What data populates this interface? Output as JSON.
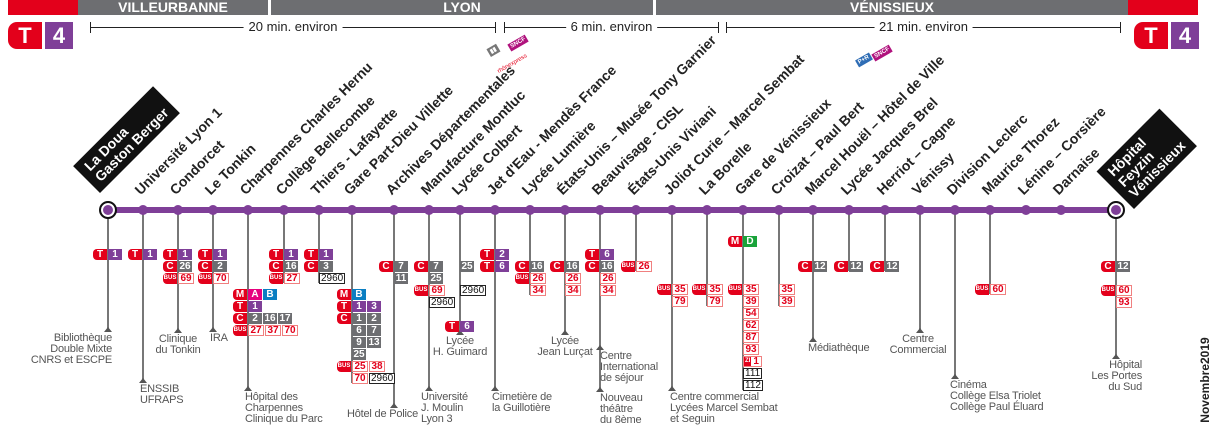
{
  "line": {
    "mode": "T",
    "number": "4"
  },
  "colors": {
    "red": "#e3001b",
    "tram_purple": "#7f3f98",
    "bus_gray": "#6d6e71",
    "metro_A": "#e6007e",
    "metro_B": "#0a7ec2",
    "metro_D": "#1aa33a"
  },
  "zones": [
    "VILLEURBANNE",
    "LYON",
    "VÉNISSIEUX"
  ],
  "durations": [
    "20 min. environ",
    "6 min. environ",
    "21 min. environ"
  ],
  "logos": {
    "sncf": "SNCF",
    "rhonexpress": "rhônexpress",
    "park_ride": "P+R"
  },
  "date": "Novembre2019",
  "stations": [
    {
      "name": "La Doua\nGaston Berger",
      "terminus": true,
      "connections": [
        {
          "mode": "T",
          "lines": [
            "1"
          ]
        }
      ],
      "labels": [
        "Bibliothèque\nDouble Mixte\nCNRS et ESCPE"
      ]
    },
    {
      "name": "Université Lyon 1",
      "connections": [
        {
          "mode": "T",
          "lines": [
            "1"
          ]
        }
      ],
      "labels": [
        "ENSSIB\nUFRAPS"
      ]
    },
    {
      "name": "Condorcet",
      "connections": [
        {
          "mode": "T",
          "lines": [
            "1"
          ]
        },
        {
          "mode": "C",
          "lines": [
            "26"
          ]
        },
        {
          "mode": "BUS",
          "lines": [
            "69"
          ]
        }
      ],
      "labels": [
        "Clinique\ndu Tonkin"
      ]
    },
    {
      "name": "Le Tonkin",
      "connections": [
        {
          "mode": "T",
          "lines": [
            "1"
          ]
        },
        {
          "mode": "C",
          "lines": [
            "2"
          ]
        },
        {
          "mode": "BUS",
          "lines": [
            "70"
          ]
        }
      ],
      "labels": [
        "IRA"
      ]
    },
    {
      "name": "Charpennes Charles Hernu",
      "connections": [
        {
          "mode": "M",
          "lines": [
            "A",
            "B"
          ]
        },
        {
          "mode": "T",
          "lines": [
            "1"
          ]
        },
        {
          "mode": "C",
          "lines": [
            "2",
            "16",
            "17"
          ]
        },
        {
          "mode": "BUS",
          "lines": [
            "27",
            "37",
            "70"
          ]
        }
      ],
      "labels": [
        "Hôpital des\nCharpennes\nClinique du Parc"
      ]
    },
    {
      "name": "Collège Bellecombe",
      "connections": [
        {
          "mode": "T",
          "lines": [
            "1"
          ]
        },
        {
          "mode": "C",
          "lines": [
            "16"
          ]
        },
        {
          "mode": "BUS",
          "lines": [
            "27"
          ]
        }
      ],
      "labels": []
    },
    {
      "name": "Thiers - Lafayette",
      "connections": [
        {
          "mode": "T",
          "lines": [
            "1"
          ]
        },
        {
          "mode": "C",
          "lines": [
            "3"
          ]
        },
        {
          "mode": "",
          "lines": [
            {
              "n": "2960",
              "style": "out"
            }
          ]
        }
      ],
      "labels": []
    },
    {
      "name": "Gare Part-Dieu Villette",
      "connections": [
        {
          "mode": "M",
          "lines": [
            "B"
          ]
        },
        {
          "mode": "T",
          "lines": [
            "1",
            "3"
          ]
        },
        {
          "mode": "C",
          "lines": [
            "1",
            "2"
          ]
        },
        {
          "mode": "",
          "cls": "C",
          "lines": [
            "6",
            "7"
          ]
        },
        {
          "mode": "",
          "cls": "C",
          "lines": [
            "9",
            "13"
          ]
        },
        {
          "mode": "",
          "cls": "C",
          "lines": [
            "25"
          ]
        },
        {
          "mode": "BUS",
          "lines": [
            "25",
            "38"
          ]
        },
        {
          "mode": "",
          "cls": "BUS",
          "lines": [
            "70",
            {
              "n": "2960",
              "style": "out"
            }
          ]
        }
      ],
      "labels": []
    },
    {
      "name": "Archives Départementales",
      "connections": [
        {
          "mode": "C",
          "lines": [
            "7"
          ]
        },
        {
          "mode": "",
          "cls": "C",
          "lines": [
            "11"
          ]
        }
      ],
      "labels": [
        "Hôtel de Police"
      ]
    },
    {
      "name": "Manufacture Montluc",
      "connections": [
        {
          "mode": "C",
          "lines": [
            "7"
          ]
        },
        {
          "mode": "",
          "cls": "C",
          "lines": [
            "25"
          ]
        },
        {
          "mode": "BUS",
          "lines": [
            "69"
          ]
        },
        {
          "mode": "",
          "lines": [
            {
              "n": "2960",
              "style": "out"
            }
          ]
        }
      ],
      "labels": [
        "Université\nJ. Moulin\nLyon 3"
      ]
    },
    {
      "name": "Lycée Colbert",
      "connections": [
        {
          "mode": "",
          "cls": "C",
          "lines": [
            "25"
          ]
        },
        {
          "mode": "",
          "lines": []
        },
        {
          "mode": "",
          "lines": [
            {
              "n": "2960",
              "style": "out"
            }
          ]
        },
        {
          "mode": "",
          "lines": []
        },
        {
          "mode": "",
          "lines": []
        },
        {
          "mode": "T",
          "lines": [
            "6"
          ]
        }
      ],
      "labels": [
        "Lycée\nH. Guimard"
      ]
    },
    {
      "name": "Jet d'Eau - Mendès France",
      "connections": [
        {
          "mode": "T",
          "lines": [
            "2"
          ]
        },
        {
          "mode": "T",
          "lines": [
            "6"
          ]
        }
      ],
      "labels": [
        "Cimetière de\nla Guillotière"
      ]
    },
    {
      "name": "Lycée Lumière",
      "connections": [
        {
          "mode": "C",
          "lines": [
            "16"
          ]
        },
        {
          "mode": "BUS",
          "lines": [
            "26"
          ]
        },
        {
          "mode": "",
          "cls": "BUS",
          "lines": [
            "34"
          ]
        }
      ],
      "labels": []
    },
    {
      "name": "États-Unis – Musée Tony Garnier",
      "connections": [
        {
          "mode": "C",
          "lines": [
            "16"
          ]
        },
        {
          "mode": "",
          "cls": "BUS",
          "lines": [
            "26"
          ]
        },
        {
          "mode": "",
          "cls": "BUS",
          "lines": [
            "34"
          ]
        }
      ],
      "labels": [
        "Lycée\nJean Lurçat"
      ]
    },
    {
      "name": "Beauvisage - CISL",
      "connections": [
        {
          "mode": "T",
          "lines": [
            "6"
          ]
        },
        {
          "mode": "C",
          "lines": [
            "16"
          ]
        },
        {
          "mode": "",
          "cls": "BUS",
          "lines": [
            "26"
          ]
        },
        {
          "mode": "",
          "cls": "BUS",
          "lines": [
            "34"
          ]
        }
      ],
      "labels": [
        "Centre\nInternational\nde séjour",
        "Nouveau\nthéâtre\ndu 8ème"
      ]
    },
    {
      "name": "États-Unis Viviani",
      "connections": [
        {
          "mode": "BUS",
          "lines": [
            "26"
          ]
        }
      ],
      "labels": []
    },
    {
      "name": "Joliot Curie – Marcel Sembat",
      "connections": [
        {
          "mode": "BUS",
          "lines": [
            "35"
          ]
        },
        {
          "mode": "",
          "cls": "BUS",
          "lines": [
            "79"
          ]
        }
      ],
      "labels": [
        "Centre commercial\nLycées Marcel Sembat\net Seguin"
      ]
    },
    {
      "name": "La Borelle",
      "connections": [
        {
          "mode": "BUS",
          "lines": [
            "35"
          ]
        },
        {
          "mode": "",
          "cls": "BUS",
          "lines": [
            "79"
          ]
        }
      ],
      "labels": []
    },
    {
      "name": "Gare de Vénissieux",
      "connections": [
        {
          "mode": "M",
          "lines": [
            "D"
          ]
        },
        {
          "mode": "",
          "lines": []
        },
        {
          "mode": "",
          "lines": []
        },
        {
          "mode": "",
          "lines": []
        },
        {
          "mode": "BUS",
          "lines": [
            "35"
          ]
        },
        {
          "mode": "",
          "cls": "BUS",
          "lines": [
            "39"
          ]
        },
        {
          "mode": "",
          "cls": "BUS",
          "lines": [
            "54"
          ]
        },
        {
          "mode": "",
          "cls": "BUS",
          "lines": [
            "62"
          ]
        },
        {
          "mode": "",
          "cls": "BUS",
          "lines": [
            "87"
          ]
        },
        {
          "mode": "",
          "cls": "BUS",
          "lines": [
            "93"
          ]
        },
        {
          "mode": "",
          "lines": [
            {
              "n": "1",
              "style": "zi",
              "tag": "ZI"
            }
          ]
        },
        {
          "mode": "",
          "lines": [
            {
              "n": "111",
              "style": "out"
            }
          ]
        },
        {
          "mode": "",
          "lines": [
            {
              "n": "112",
              "style": "out"
            }
          ]
        }
      ],
      "labels": []
    },
    {
      "name": "Croizat – Paul Bert",
      "connections": [
        {
          "mode": "",
          "cls": "BUS",
          "lines": [
            "35"
          ]
        },
        {
          "mode": "",
          "cls": "BUS",
          "lines": [
            "39"
          ]
        }
      ],
      "labels": []
    },
    {
      "name": "Marcel Houël – Hôtel de Ville",
      "connections": [
        {
          "mode": "C",
          "lines": [
            "12"
          ]
        }
      ],
      "labels": [
        "Médiathèque"
      ]
    },
    {
      "name": "Lycée Jacques Brel",
      "connections": [
        {
          "mode": "C",
          "lines": [
            "12"
          ]
        }
      ],
      "labels": []
    },
    {
      "name": "Herriot – Cagne",
      "connections": [
        {
          "mode": "C",
          "lines": [
            "12"
          ]
        }
      ],
      "labels": []
    },
    {
      "name": "Vénissy",
      "connections": [],
      "labels": [
        "Centre\nCommercial"
      ]
    },
    {
      "name": "Division Leclerc",
      "connections": [],
      "labels": [
        "Cinéma\nCollège Elsa Triolet\nCollège Paul Éluard"
      ]
    },
    {
      "name": "Maurice Thorez",
      "connections": [
        {
          "mode": "BUS",
          "lines": [
            "60"
          ]
        }
      ],
      "labels": []
    },
    {
      "name": "Lénine – Corsière",
      "connections": [],
      "labels": []
    },
    {
      "name": "Darnaise",
      "connections": [],
      "labels": []
    },
    {
      "name": "Hôpital\nFeyzin\nVénissieux",
      "terminus": true,
      "connections": [
        {
          "mode": "C",
          "lines": [
            "12"
          ]
        },
        {
          "mode": "",
          "lines": []
        },
        {
          "mode": "BUS",
          "lines": [
            "60"
          ]
        },
        {
          "mode": "",
          "cls": "BUS",
          "lines": [
            "93"
          ]
        }
      ],
      "labels": [
        "Hôpital\nLes Portes\ndu Sud"
      ]
    }
  ]
}
